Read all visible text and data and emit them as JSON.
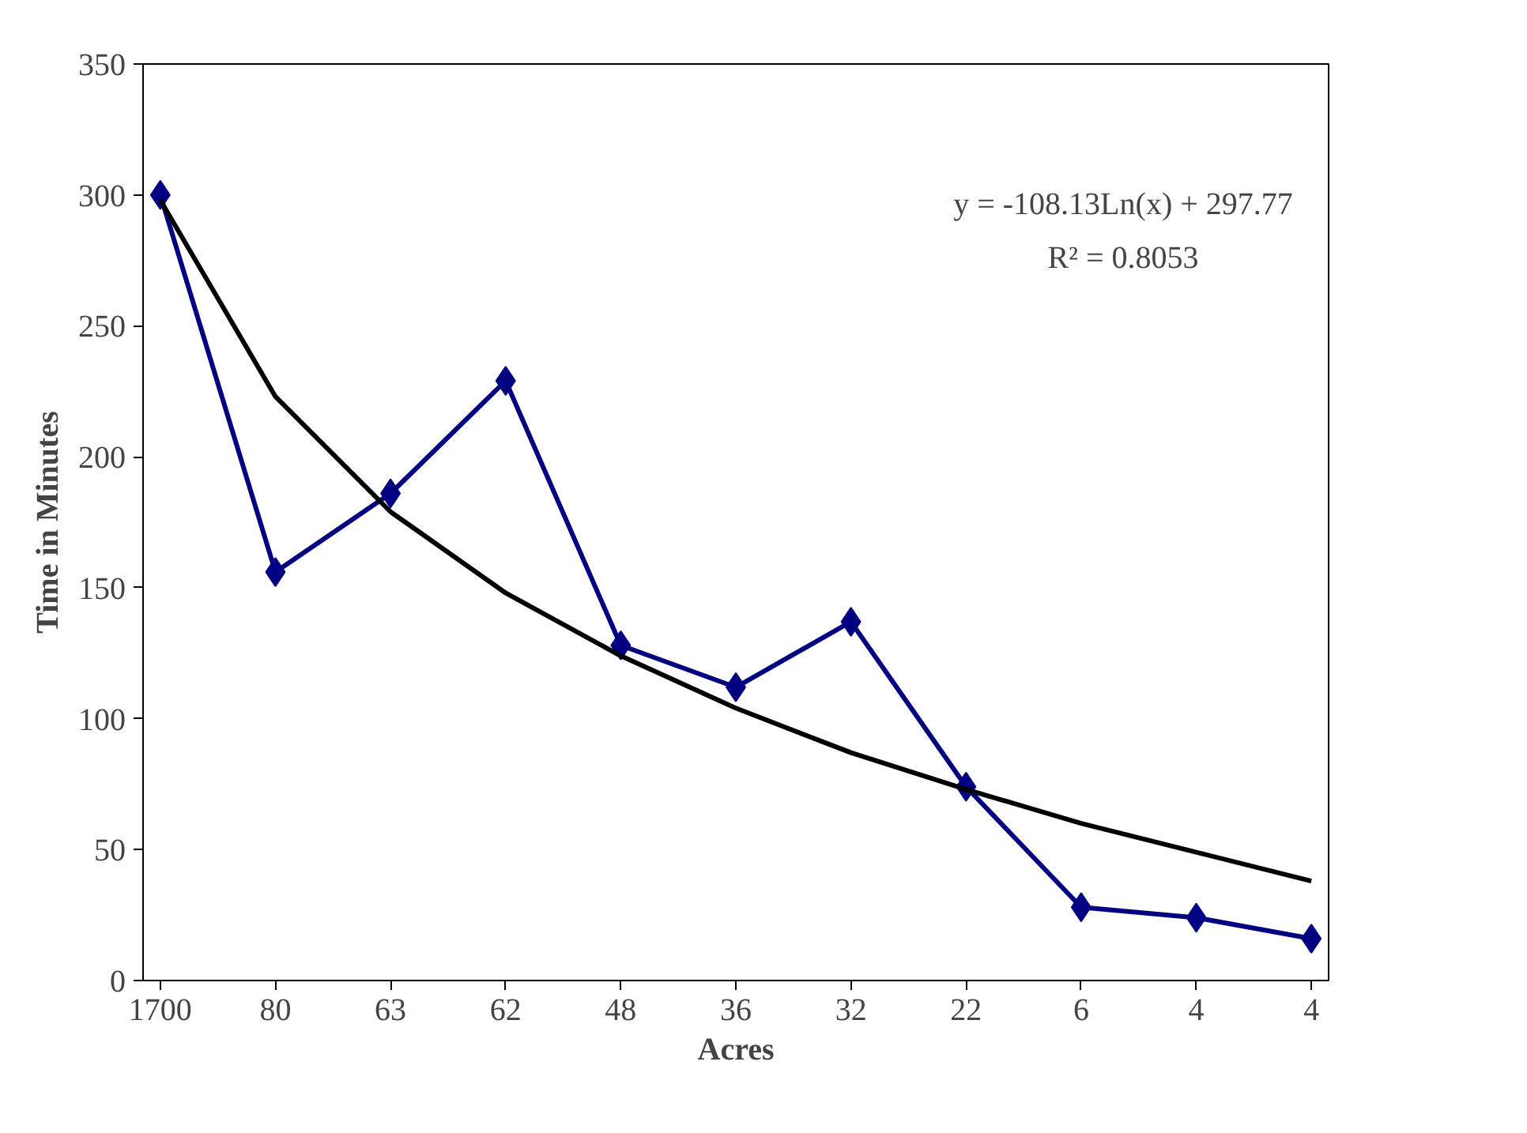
{
  "chart_data": {
    "type": "line",
    "xlabel": "Acres",
    "ylabel": "Time in Minutes",
    "categories": [
      "1700",
      "80",
      "63",
      "62",
      "48",
      "36",
      "32",
      "22",
      "6",
      "4",
      "4"
    ],
    "ylim": [
      0,
      350
    ],
    "yticks": [
      0,
      50,
      100,
      150,
      200,
      250,
      300,
      350
    ],
    "grid": false,
    "series": [
      {
        "color": "#000080",
        "marker": "diamond",
        "values": [
          300,
          156,
          186,
          229,
          128,
          112,
          137,
          74,
          28,
          24,
          16
        ]
      },
      {
        "type": "line",
        "color": "#000000",
        "marker": "none",
        "values": [
          298,
          223,
          179,
          148,
          124,
          104,
          87,
          73,
          60,
          49,
          38
        ]
      }
    ],
    "annotations": [
      "y = -108.13Ln(x) + 297.77",
      "R² = 0.8053"
    ]
  }
}
